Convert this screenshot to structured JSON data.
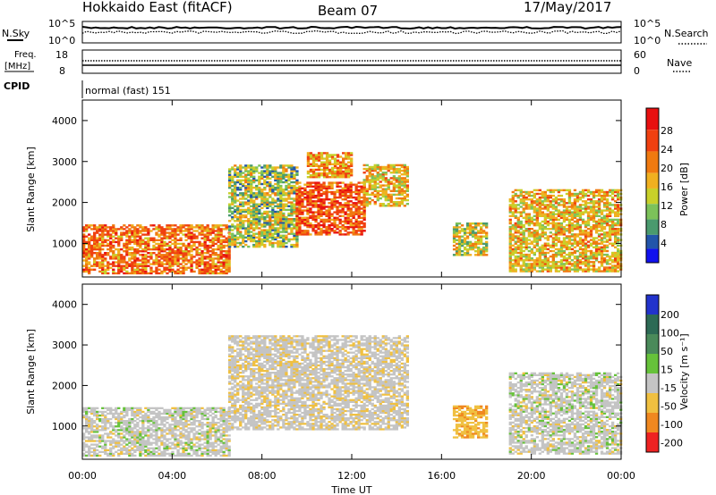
{
  "header": {
    "radar": "Hokkaido East (fitACF)",
    "beam": "Beam 07",
    "date": "17/May/2017"
  },
  "panels": {
    "nsky": {
      "label": "N.Sky",
      "ticks": [
        "10^5",
        "10^0"
      ]
    },
    "nsearch": {
      "label": "N.Search",
      "ticks": [
        "10^5",
        "10^0"
      ]
    },
    "freq": {
      "label_line1": "Freq.",
      "label_line2": "[MHz]",
      "ticks": [
        "18",
        "8"
      ]
    },
    "nave": {
      "label": "Nave",
      "ticks": [
        "60",
        "0"
      ]
    },
    "cpid": {
      "label": "CPID",
      "value": "normal (fast) 151"
    }
  },
  "power_colorbar": {
    "title": "Power [dB]",
    "ticks": [
      "28",
      "24",
      "20",
      "16",
      "12",
      "8",
      "4"
    ]
  },
  "velocity_colorbar": {
    "title": "Velocity [m s⁻¹]",
    "ticks": [
      "200",
      "100",
      "50",
      "15",
      "-15",
      "-50",
      "-100",
      "-200"
    ]
  },
  "chart_data": [
    {
      "type": "heatmap",
      "name": "power",
      "xlabel": "",
      "ylabel": "Slant Range [km]",
      "ylim": [
        180,
        4500
      ],
      "y_ticks": [
        "1000",
        "2000",
        "3000",
        "4000"
      ],
      "xlim": [
        0,
        24
      ],
      "regions": [
        {
          "t": [
            0,
            6.5
          ],
          "r": [
            250,
            1450
          ],
          "value": 24
        },
        {
          "t": [
            6.5,
            9.5
          ],
          "r": [
            900,
            2900
          ],
          "value": 17
        },
        {
          "t": [
            9.5,
            12.5
          ],
          "r": [
            1200,
            2500
          ],
          "value": 26
        },
        {
          "t": [
            10,
            12
          ],
          "r": [
            2600,
            3200
          ],
          "value": 22
        },
        {
          "t": [
            12.5,
            14.5
          ],
          "r": [
            1900,
            2900
          ],
          "value": 20
        },
        {
          "t": [
            16.5,
            18
          ],
          "r": [
            700,
            1500
          ],
          "value": 18
        },
        {
          "t": [
            19,
            24
          ],
          "r": [
            300,
            2300
          ],
          "value": 20
        }
      ]
    },
    {
      "type": "heatmap",
      "name": "velocity",
      "xlabel": "Time UT",
      "ylabel": "Slant Range [km]",
      "ylim": [
        180,
        4500
      ],
      "y_ticks": [
        "1000",
        "2000",
        "3000",
        "4000"
      ],
      "x_ticks": [
        "00:00",
        "04:00",
        "08:00",
        "12:00",
        "16:00",
        "20:00",
        "00:00"
      ],
      "xlim": [
        0,
        24
      ],
      "regions": [
        {
          "t": [
            0,
            6.5
          ],
          "r": [
            250,
            1450
          ],
          "value": 0
        },
        {
          "t": [
            6.5,
            14.5
          ],
          "r": [
            900,
            3200
          ],
          "value": -5
        },
        {
          "t": [
            16.5,
            18
          ],
          "r": [
            700,
            1500
          ],
          "value": -40
        },
        {
          "t": [
            19,
            24
          ],
          "r": [
            300,
            2300
          ],
          "value": 0
        }
      ]
    }
  ]
}
